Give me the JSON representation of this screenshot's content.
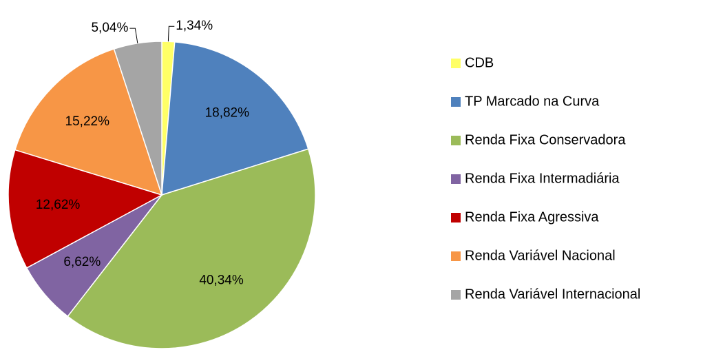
{
  "chart_data": {
    "type": "pie",
    "categories": [
      "CDB",
      "TP Marcado na Curva",
      "Renda Fixa Conservadora",
      "Renda Fixa Intermadiária",
      "Renda Fixa Agressiva",
      "Renda Variável Nacional",
      "Renda Variável Internacional"
    ],
    "values": [
      1.34,
      18.82,
      40.34,
      6.62,
      12.62,
      15.22,
      5.04
    ],
    "value_labels": [
      "1,34%",
      "18,82%",
      "40,34%",
      "6,62%",
      "12,62%",
      "15,22%",
      "5,04%"
    ],
    "colors": [
      "#ffff66",
      "#4f81bd",
      "#9bbb59",
      "#8064a2",
      "#c00000",
      "#f79646",
      "#a5a5a5"
    ],
    "legend": "right"
  }
}
